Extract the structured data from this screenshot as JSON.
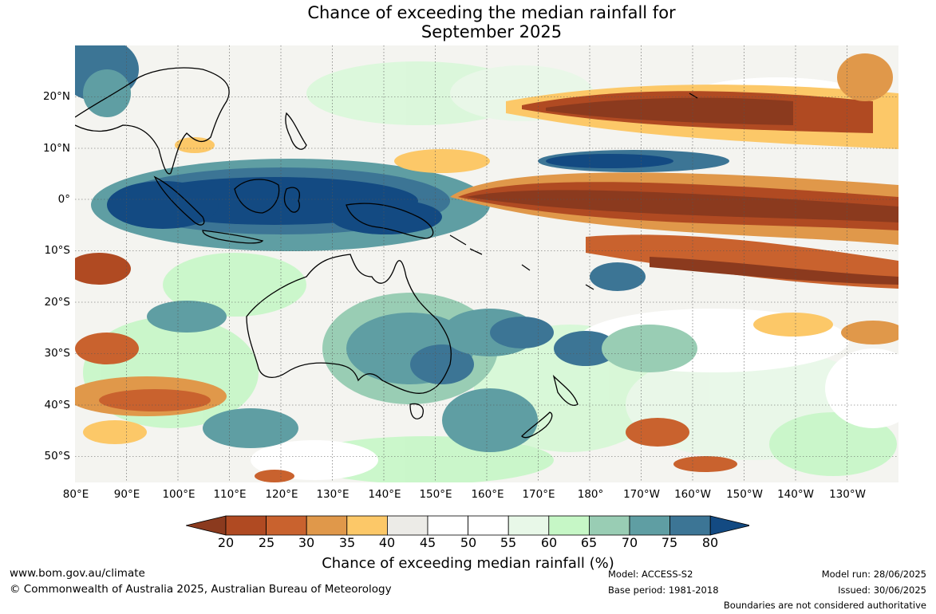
{
  "title": {
    "line1": "Chance of exceeding the median rainfall for",
    "line2": "September 2025"
  },
  "map": {
    "lat_labels": [
      "20°N",
      "10°N",
      "0°",
      "10°S",
      "20°S",
      "30°S",
      "40°S",
      "50°S"
    ],
    "lon_labels": [
      "80°E",
      "90°E",
      "100°E",
      "110°E",
      "120°E",
      "130°E",
      "140°E",
      "150°E",
      "160°E",
      "170°E",
      "180°",
      "170°W",
      "160°W",
      "150°W",
      "140°W",
      "130°W"
    ],
    "lon_range": [
      "80°E",
      "120°W"
    ],
    "lat_range": [
      "55°S",
      "30°N"
    ],
    "grid": true
  },
  "colorbar": {
    "ticks": [
      "20",
      "25",
      "30",
      "35",
      "40",
      "45",
      "50",
      "55",
      "60",
      "65",
      "70",
      "75",
      "80"
    ],
    "colors": [
      "#8b3a1e",
      "#b04a22",
      "#c9622e",
      "#e0984a",
      "#fcc868",
      "#ecebe7",
      "#ffffff",
      "#ffffff",
      "#e8f8e8",
      "#c6f7c6",
      "#99cdb4",
      "#5f9ea3",
      "#3c7595",
      "#134a82"
    ],
    "label": "Chance of exceeding median rainfall (%)"
  },
  "footer": {
    "website": "www.bom.gov.au/climate",
    "copyright": "© Commonwealth of Australia 2025, Australian Bureau of Meteorology",
    "model": "Model: ACCESS-S2",
    "base_period": "Base period: 1981-2018",
    "model_run": "Model run: 28/06/2025",
    "issued": "Issued: 30/06/2025",
    "disclaimer": "Boundaries are not considered authoritative"
  }
}
